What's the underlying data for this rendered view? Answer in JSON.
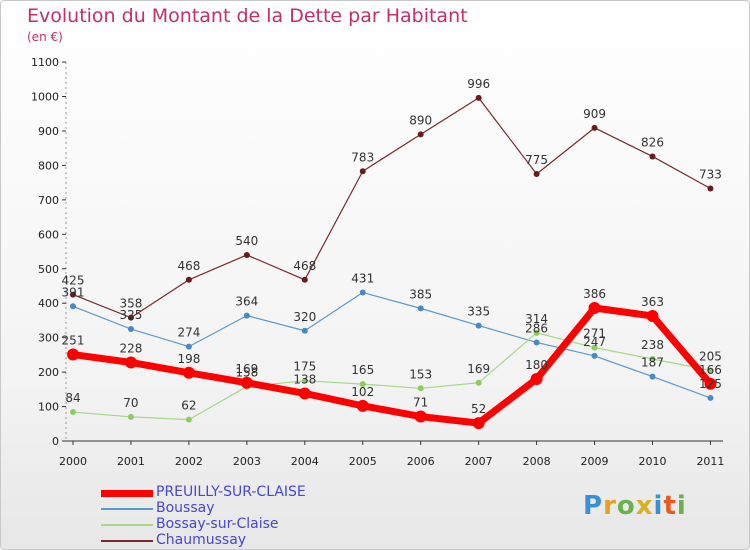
{
  "title": "Evolution du Montant de la Dette par Habitant",
  "unit": "(en €)",
  "logo": {
    "letters": [
      "P",
      "r",
      "o",
      "x",
      "i",
      "t",
      "i"
    ],
    "colors": [
      "#3a8fd6",
      "#e8a020",
      "#6ab04c",
      "#d8b020",
      "#3a8fd6",
      "#e85a20",
      "#6ab04c"
    ]
  },
  "chart_data": {
    "type": "line",
    "x": [
      "2000",
      "2001",
      "2002",
      "2003",
      "2004",
      "2005",
      "2006",
      "2007",
      "2008",
      "2009",
      "2010",
      "2011"
    ],
    "ylim": [
      0,
      1100
    ],
    "yticks": [
      0,
      100,
      200,
      300,
      400,
      500,
      600,
      700,
      800,
      900,
      1000,
      1100
    ],
    "grid": false,
    "legend": "bottom-left",
    "series": [
      {
        "name": "Chaumussay",
        "color": "#7a2a2a",
        "marker": "#6a1a1a",
        "width": 1.2,
        "radius": 3,
        "values": [
          425,
          358,
          468,
          540,
          468,
          783,
          890,
          996,
          775,
          909,
          826,
          733
        ],
        "labels": [
          "425",
          "358",
          "468",
          "540",
          "468",
          "783",
          "890",
          "996",
          "775",
          "909",
          "826",
          "733"
        ]
      },
      {
        "name": "Boussay",
        "color": "#5a9ad0",
        "marker": "#4a88c4",
        "width": 1.2,
        "radius": 3,
        "values": [
          391,
          325,
          274,
          364,
          320,
          431,
          385,
          335,
          286,
          247,
          187,
          125
        ],
        "labels": [
          "391",
          "325",
          "274",
          "364",
          "320",
          "431",
          "385",
          "335",
          "286",
          "247",
          "187",
          "125"
        ]
      },
      {
        "name": "Bossay-sur-Claise",
        "color": "#a6d88a",
        "marker": "#8ccc60",
        "width": 1.2,
        "radius": 3,
        "values": [
          84,
          70,
          62,
          158,
          175,
          165,
          153,
          169,
          314,
          271,
          238,
          205
        ],
        "labels": [
          "84",
          "70",
          "62",
          "158",
          "175",
          "165",
          "153",
          "169",
          "314",
          "271",
          "238",
          "205"
        ]
      },
      {
        "name": "PREUILLY-SUR-CLAISE",
        "color": "#ff0000",
        "marker": "#ff0000",
        "width": 7,
        "radius": 6,
        "values": [
          251,
          228,
          198,
          169,
          138,
          102,
          71,
          52,
          180,
          386,
          363,
          166
        ],
        "labels": [
          "251",
          "228",
          "198",
          "169",
          "138",
          "102",
          "71",
          "52",
          "180",
          "386",
          "363",
          "166"
        ]
      }
    ],
    "legend_order": [
      "PREUILLY-SUR-CLAISE",
      "Boussay",
      "Bossay-sur-Claise",
      "Chaumussay"
    ]
  }
}
